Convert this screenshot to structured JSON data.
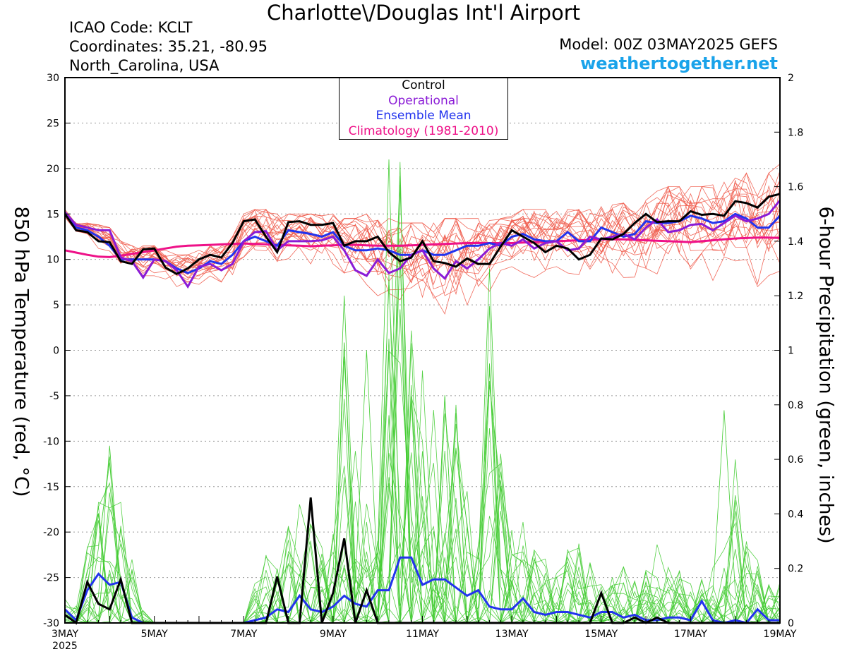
{
  "header": {
    "title": "Charlotte\\/Douglas Int'l Airport",
    "icao": "ICAO Code: KCLT",
    "coordinates": "Coordinates: 35.21, -80.95",
    "region": "North_Carolina, USA",
    "model": "Model: 00Z 03MAY2025 GEFS",
    "site": "weathertogether.net"
  },
  "colors": {
    "control": "#000000",
    "operational": "#8a1bd6",
    "ensemble_mean": "#2233ee",
    "climatology": "#ee1188",
    "members_temp": "#f05a4a",
    "members_precip": "#44cc33",
    "site": "#1aa3ea"
  },
  "chart_data": {
    "type": "line",
    "ylabel": "850 hPa Temperature (red, °C)",
    "y2label": "6-hour Precipitation (green, inches)",
    "ylim": [
      -30,
      30
    ],
    "y2lim": [
      0,
      2
    ],
    "yticks": [
      "30",
      "25",
      "20",
      "15",
      "10",
      "5",
      "0",
      "-5",
      "-10",
      "-15",
      "-20",
      "-25",
      "-30"
    ],
    "y2ticks": [
      "2",
      "1.8",
      "1.6",
      "1.4",
      "1.2",
      "1",
      "0.8",
      "0.6",
      "0.4",
      "0.2",
      "0"
    ],
    "xlim": [
      0,
      64
    ],
    "xticks": [
      {
        "x": 0,
        "label": "3MAY",
        "sub": "2025"
      },
      {
        "x": 8,
        "label": "5MAY"
      },
      {
        "x": 16,
        "label": "7MAY"
      },
      {
        "x": 24,
        "label": "9MAY"
      },
      {
        "x": 32,
        "label": "11MAY"
      },
      {
        "x": 40,
        "label": "13MAY"
      },
      {
        "x": 48,
        "label": "15MAY"
      },
      {
        "x": 56,
        "label": "17MAY"
      },
      {
        "x": 64,
        "label": "19MAY"
      }
    ],
    "grid": true,
    "legend": {
      "position": "top-center",
      "entries": [
        {
          "label": "Control",
          "color": "#000000"
        },
        {
          "label": "Operational",
          "color": "#8a1bd6"
        },
        {
          "label": "Ensemble Mean",
          "color": "#2233ee"
        },
        {
          "label": "Climatology (1981-2010)",
          "color": "#ee1188"
        }
      ]
    },
    "temperature": {
      "control": [
        15,
        13.2,
        13,
        12,
        11.9,
        9.8,
        9.5,
        11.1,
        11.2,
        9.1,
        8.4,
        9,
        10,
        10.5,
        10.2,
        11.8,
        14.2,
        14.4,
        12.5,
        10.8,
        14.1,
        14.2,
        13.8,
        13.8,
        14,
        11.5,
        12,
        12,
        12.5,
        10.8,
        9.8,
        10.2,
        12,
        9.8,
        9.6,
        9.2,
        10.1,
        9.5,
        9.5,
        11.4,
        13.2,
        12.5,
        11.8,
        10.8,
        11.5,
        11.2,
        10,
        10.5,
        12.3,
        12.2,
        12.8,
        14,
        15,
        14.1,
        14.2,
        14.2,
        15.3,
        14.9,
        15,
        14.8,
        16.4,
        16.2,
        15.7,
        16.9,
        17.2
      ],
      "operational": [
        15.2,
        13.8,
        13.5,
        13.2,
        13.2,
        10.2,
        9.8,
        8,
        10,
        9.8,
        8.8,
        7,
        9.2,
        9.5,
        8.8,
        9.5,
        12,
        13,
        13.1,
        11,
        12,
        12,
        12,
        12.1,
        12.5,
        11,
        8.8,
        8.2,
        10,
        8.5,
        9,
        10.5,
        11,
        9,
        7.9,
        9.8,
        9,
        10,
        11.2,
        11.8,
        11.5,
        12.2,
        11.2,
        11.8,
        12,
        11,
        11.2,
        12.5,
        12.2,
        12.5,
        12.8,
        12.2,
        13.5,
        14.4,
        13,
        13.2,
        13.8,
        13.9,
        13.2,
        14,
        14.8,
        14.2,
        14.5,
        15,
        16.5
      ],
      "ensemble_mean": [
        15.1,
        13.5,
        13.2,
        12.5,
        11.5,
        10,
        10,
        10,
        10,
        9.8,
        9,
        8.5,
        9,
        9.8,
        9.5,
        10.5,
        12,
        12.5,
        12,
        11.5,
        13.2,
        13,
        12.8,
        12.5,
        13,
        11.5,
        11,
        11,
        11.2,
        11,
        10.5,
        10.5,
        11,
        10.5,
        10.5,
        11,
        11.5,
        11.5,
        11.8,
        11.5,
        12.5,
        12.8,
        12.2,
        12,
        12,
        13,
        12,
        12,
        13.5,
        13,
        12.5,
        12.8,
        14.2,
        14,
        14,
        14.2,
        14.8,
        14.5,
        14,
        14.2,
        15,
        14.5,
        13.5,
        13.5,
        14.8
      ],
      "climatology": [
        11,
        10.75,
        10.5,
        10.3,
        10.25,
        10.4,
        10.6,
        10.8,
        11,
        11.2,
        11.4,
        11.5,
        11.55,
        11.6,
        11.65,
        11.7,
        11.75,
        11.7,
        11.65,
        11.6,
        11.55,
        11.5,
        11.45,
        11.5,
        11.55,
        11.6,
        11.6,
        11.55,
        11.5,
        11.5,
        11.5,
        11.55,
        11.6,
        11.65,
        11.7,
        11.75,
        11.8,
        11.8,
        11.8,
        11.8,
        11.8,
        11.85,
        11.9,
        11.95,
        12,
        12.05,
        12.1,
        12.15,
        12.2,
        12.2,
        12.2,
        12.15,
        12.1,
        12.05,
        12,
        11.95,
        11.9,
        12,
        12.1,
        12.2,
        12.3,
        12.35,
        12.4,
        12.4,
        12.35
      ],
      "members_low": [
        14.5,
        12.8,
        12.5,
        11.2,
        10.5,
        8.5,
        8.5,
        8,
        8.2,
        7.5,
        7,
        6.5,
        7,
        7.5,
        7.5,
        7,
        9,
        9.5,
        9.5,
        9,
        10,
        10,
        9.5,
        9.5,
        9.5,
        8.5,
        8,
        6,
        6,
        5.5,
        5,
        4.5,
        4,
        3.8,
        4,
        4.5,
        5,
        5.5,
        6.5,
        8,
        8.5,
        8.5,
        8,
        8,
        8.5,
        8.5,
        8,
        8,
        8.5,
        8.5,
        8,
        8,
        7.5,
        7.5,
        7.5,
        7.5,
        8,
        8,
        7.5,
        7,
        7.5,
        7,
        7,
        7,
        7.5
      ],
      "members_high": [
        15.5,
        14,
        14,
        13.8,
        13.5,
        12,
        11.5,
        11.5,
        11.5,
        11,
        10.5,
        10.5,
        11,
        11.5,
        11.5,
        12.5,
        15,
        15.5,
        15.5,
        15,
        15,
        15,
        15,
        14.8,
        15,
        14.5,
        14.5,
        15,
        15,
        14.5,
        14,
        14,
        14,
        14,
        14.5,
        14.5,
        14.5,
        14.5,
        14.5,
        14.5,
        15,
        15.5,
        15.5,
        15.5,
        15.5,
        15.5,
        15.5,
        15.5,
        15.8,
        16,
        16.2,
        16.2,
        16.5,
        17.5,
        18,
        18,
        18,
        18,
        18.2,
        18.5,
        19,
        19.5,
        19,
        19.5,
        20.5
      ]
    },
    "precipitation": {
      "control": [
        0.03,
        0,
        0.15,
        0.07,
        0.05,
        0.16,
        0,
        0,
        0,
        0,
        0,
        0,
        0,
        0,
        0,
        0,
        0,
        0,
        0,
        0.17,
        0,
        0,
        0.46,
        0,
        0.11,
        0.31,
        0,
        0.12,
        0,
        0,
        0,
        0,
        0,
        0,
        0,
        0,
        0,
        0,
        0,
        0,
        0,
        0,
        0,
        0,
        0,
        0,
        0,
        0,
        0.11,
        0,
        0,
        0.02,
        0,
        0.02,
        0,
        0,
        0,
        0,
        0,
        0,
        0,
        0,
        0,
        0,
        0
      ],
      "ensemble_mean": [
        0.05,
        0.01,
        0.12,
        0.18,
        0.14,
        0.15,
        0.02,
        0,
        0,
        0,
        0,
        0,
        0,
        0,
        0,
        0,
        0,
        0.01,
        0.02,
        0.05,
        0.04,
        0.1,
        0.05,
        0.04,
        0.06,
        0.1,
        0.07,
        0.06,
        0.12,
        0.12,
        0.24,
        0.24,
        0.14,
        0.16,
        0.16,
        0.13,
        0.1,
        0.12,
        0.06,
        0.05,
        0.05,
        0.09,
        0.04,
        0.03,
        0.04,
        0.04,
        0.03,
        0.02,
        0.04,
        0.04,
        0.02,
        0.03,
        0.01,
        0.01,
        0.02,
        0.02,
        0.01,
        0.08,
        0.01,
        0,
        0.01,
        0,
        0.05,
        0.01,
        0.01
      ],
      "members_max": [
        0.12,
        0.08,
        0.3,
        0.45,
        0.65,
        0.48,
        0.25,
        0.05,
        0,
        0,
        0,
        0,
        0,
        0,
        0,
        0,
        0,
        0.22,
        0.25,
        0.2,
        0.45,
        0.48,
        0.38,
        0.3,
        0.4,
        1.2,
        0.65,
        0.55,
        0.35,
        1.3,
        1.7,
        1.15,
        1.0,
        0.95,
        0.85,
        0.8,
        0.5,
        0.35,
        1.3,
        0.65,
        0.35,
        0.45,
        0.28,
        0.3,
        0.2,
        0.28,
        0.35,
        0.25,
        0.15,
        0.2,
        0.25,
        0.18,
        0.2,
        0.3,
        0.22,
        0.2,
        0.15,
        0.2,
        0.22,
        0.3,
        0.78,
        0.3,
        0.25,
        0.15,
        0.15
      ]
    }
  }
}
